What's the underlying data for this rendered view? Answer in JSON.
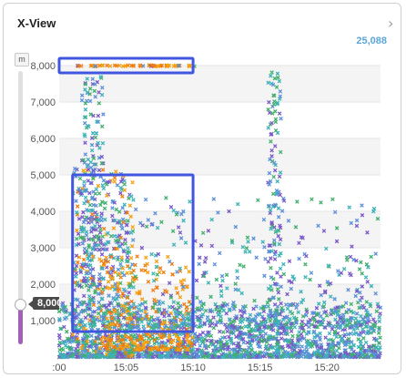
{
  "widget": {
    "title": "X-View",
    "total": "25,088",
    "unit": "m"
  },
  "slider": {
    "value_label": "8,000",
    "max_fraction": 0.08
  },
  "colors": {
    "purple": "#7a57c9",
    "green": "#41b06b",
    "teal": "#3cb3b9",
    "blue": "#5a8fd9",
    "orange": "#f5a010",
    "orange_dark": "#f07d10",
    "highlight": "#4056e0"
  },
  "chart_data": {
    "type": "scatter",
    "title": "X-View",
    "xlabel": "",
    "ylabel": "",
    "x_ticks": [
      ":00",
      "15:05",
      "15:10",
      "15:15",
      "15:20"
    ],
    "y_ticks": [
      "1,000",
      "2,000",
      "3,000",
      "4,000",
      "5,000",
      "6,000",
      "7,000",
      "8,000"
    ],
    "xlim": [
      "15:00",
      "15:24"
    ],
    "ylim": [
      0,
      8300
    ],
    "point_count": 25088,
    "series": [],
    "selections": [
      {
        "x_range": [
          "15:00",
          "15:10"
        ],
        "y_range": [
          7800,
          8200
        ]
      },
      {
        "x_range": [
          "15:01",
          "15:10"
        ],
        "y_range": [
          700,
          5000
        ]
      }
    ]
  }
}
